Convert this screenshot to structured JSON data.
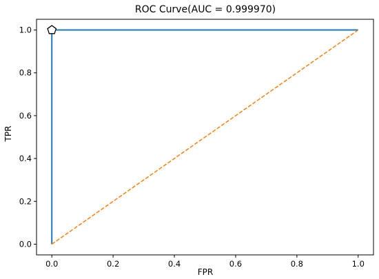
{
  "chart_data": {
    "type": "line",
    "title": "ROC Curve(AUC = 0.999970)",
    "xlabel": "FPR",
    "ylabel": "TPR",
    "xlim": [
      -0.05,
      1.05
    ],
    "ylim": [
      -0.05,
      1.05
    ],
    "xticks": [
      0.0,
      0.2,
      0.4,
      0.6,
      0.8,
      1.0
    ],
    "yticks": [
      0.0,
      0.2,
      0.4,
      0.6,
      0.8,
      1.0
    ],
    "xtick_labels": [
      "0.0",
      "0.2",
      "0.4",
      "0.6",
      "0.8",
      "1.0"
    ],
    "ytick_labels": [
      "0.0",
      "0.2",
      "0.4",
      "0.6",
      "0.8",
      "1.0"
    ],
    "grid": false,
    "series": [
      {
        "style": "solid",
        "color": "#1f77b4",
        "x": [
          0.0,
          0.0,
          0.003,
          1.0
        ],
        "y": [
          0.0,
          0.995,
          1.0,
          1.0
        ]
      },
      {
        "style": "dashed",
        "color": "#ff7f0e",
        "x": [
          0.0,
          1.0
        ],
        "y": [
          0.0,
          1.0
        ]
      }
    ],
    "marker": {
      "shape": "pentagon",
      "x": 0.0,
      "y": 1.0,
      "fill": "#ffffff",
      "stroke": "#000000"
    }
  }
}
